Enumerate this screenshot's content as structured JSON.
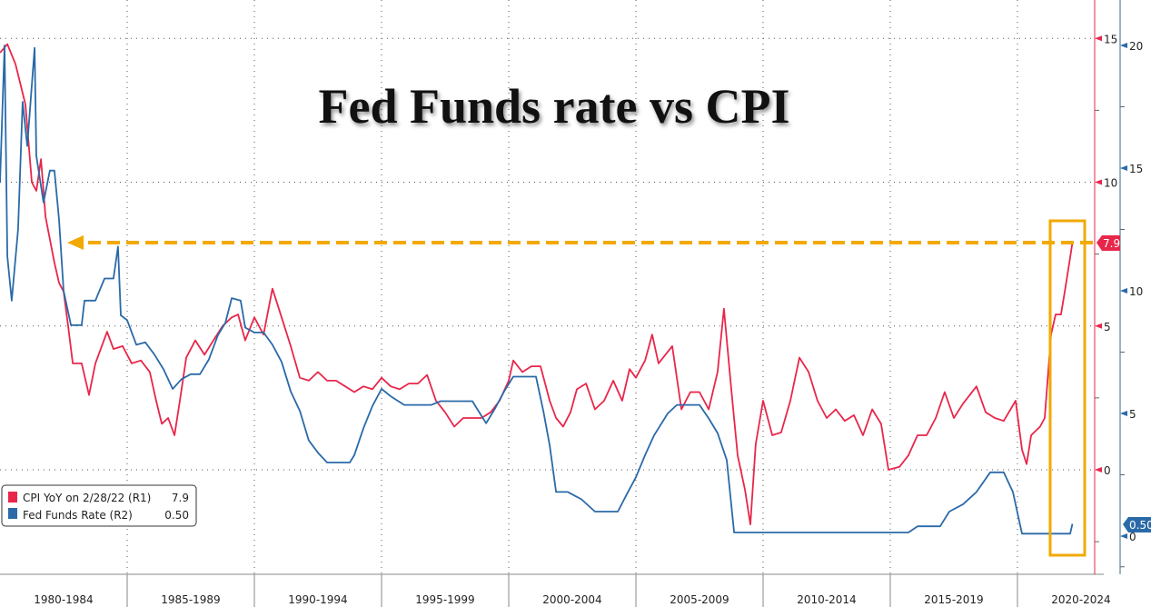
{
  "chart_data": {
    "type": "line",
    "title": "Fed Funds rate vs CPI",
    "x_tick_labels": [
      "1980-1984",
      "1985-1989",
      "1990-1994",
      "1995-1999",
      "2000-2004",
      "2005-2009",
      "2010-2014",
      "2015-2019",
      "2020-2024"
    ],
    "xlim": [
      1980,
      2023.1
    ],
    "axes": {
      "R1": {
        "ylim": [
          -2.5,
          16.5
        ],
        "ticks": [
          0,
          5,
          10,
          15
        ],
        "color": "#e8264a"
      },
      "R2": {
        "ylim": [
          -1.5,
          22
        ],
        "ticks": [
          0,
          5,
          10,
          15,
          20
        ],
        "color": "#2a6aa8"
      }
    },
    "grid": true,
    "legend_position": "bottom-left",
    "legend": [
      {
        "label": "CPI YoY on 2/28/22 (R1)",
        "value": "7.9",
        "color": "#e8264a"
      },
      {
        "label": "Fed Funds Rate (R2)",
        "value": "0.50",
        "color": "#2a6aa8"
      }
    ],
    "last_value_labels": {
      "cpi": "7.9",
      "fed": "0.50"
    },
    "annotation": {
      "type": "dashed arrow from latest CPI back to same level in 1982, box around 2021-2022",
      "color": "#f2a900",
      "level": 7.9
    },
    "series": [
      {
        "name": "CPI YoY on 2/28/22 (R1)",
        "axis": "R1",
        "color": "#e8264a",
        "points": [
          [
            1980.0,
            14.5
          ],
          [
            1980.29,
            14.8
          ],
          [
            1980.61,
            14.1
          ],
          [
            1981.0,
            12.7
          ],
          [
            1981.25,
            10.0
          ],
          [
            1981.43,
            9.7
          ],
          [
            1981.61,
            10.8
          ],
          [
            1981.79,
            8.8
          ],
          [
            1982.14,
            7.2
          ],
          [
            1982.32,
            6.5
          ],
          [
            1982.5,
            6.2
          ],
          [
            1982.68,
            5.0
          ],
          [
            1982.86,
            3.7
          ],
          [
            1983.21,
            3.7
          ],
          [
            1983.5,
            2.6
          ],
          [
            1983.75,
            3.7
          ],
          [
            1984.21,
            4.8
          ],
          [
            1984.46,
            4.2
          ],
          [
            1984.82,
            4.3
          ],
          [
            1985.18,
            3.7
          ],
          [
            1985.54,
            3.8
          ],
          [
            1985.89,
            3.4
          ],
          [
            1986.14,
            2.4
          ],
          [
            1986.36,
            1.6
          ],
          [
            1986.61,
            1.8
          ],
          [
            1986.86,
            1.2
          ],
          [
            1987.07,
            2.4
          ],
          [
            1987.32,
            3.9
          ],
          [
            1987.68,
            4.5
          ],
          [
            1988.04,
            4.0
          ],
          [
            1988.39,
            4.5
          ],
          [
            1988.75,
            5.0
          ],
          [
            1989.11,
            5.3
          ],
          [
            1989.36,
            5.4
          ],
          [
            1989.64,
            4.5
          ],
          [
            1990.0,
            5.3
          ],
          [
            1990.36,
            4.7
          ],
          [
            1990.71,
            6.3
          ],
          [
            1991.07,
            5.3
          ],
          [
            1991.43,
            4.3
          ],
          [
            1991.79,
            3.2
          ],
          [
            1992.14,
            3.1
          ],
          [
            1992.5,
            3.4
          ],
          [
            1992.86,
            3.1
          ],
          [
            1993.21,
            3.1
          ],
          [
            1993.57,
            2.9
          ],
          [
            1993.93,
            2.7
          ],
          [
            1994.29,
            2.9
          ],
          [
            1994.64,
            2.8
          ],
          [
            1995.0,
            3.2
          ],
          [
            1995.36,
            2.9
          ],
          [
            1995.71,
            2.8
          ],
          [
            1996.07,
            3.0
          ],
          [
            1996.43,
            3.0
          ],
          [
            1996.79,
            3.3
          ],
          [
            1997.14,
            2.4
          ],
          [
            1997.5,
            2.0
          ],
          [
            1997.86,
            1.5
          ],
          [
            1998.21,
            1.8
          ],
          [
            1998.57,
            1.8
          ],
          [
            1998.93,
            1.8
          ],
          [
            1999.29,
            2.0
          ],
          [
            1999.64,
            2.4
          ],
          [
            2000.0,
            3.1
          ],
          [
            2000.18,
            3.8
          ],
          [
            2000.54,
            3.4
          ],
          [
            2000.89,
            3.6
          ],
          [
            2001.25,
            3.6
          ],
          [
            2001.61,
            2.4
          ],
          [
            2001.86,
            1.8
          ],
          [
            2002.14,
            1.5
          ],
          [
            2002.43,
            2.0
          ],
          [
            2002.68,
            2.8
          ],
          [
            2003.04,
            3.0
          ],
          [
            2003.39,
            2.1
          ],
          [
            2003.75,
            2.4
          ],
          [
            2004.11,
            3.1
          ],
          [
            2004.46,
            2.4
          ],
          [
            2004.75,
            3.5
          ],
          [
            2005.0,
            3.2
          ],
          [
            2005.36,
            3.8
          ],
          [
            2005.64,
            4.7
          ],
          [
            2005.89,
            3.7
          ],
          [
            2006.43,
            4.3
          ],
          [
            2006.79,
            2.1
          ],
          [
            2007.14,
            2.7
          ],
          [
            2007.5,
            2.7
          ],
          [
            2007.86,
            2.1
          ],
          [
            2008.21,
            3.4
          ],
          [
            2008.46,
            5.6
          ],
          [
            2008.75,
            2.8
          ],
          [
            2009.0,
            0.5
          ],
          [
            2009.29,
            -0.7
          ],
          [
            2009.5,
            -1.9
          ],
          [
            2009.71,
            0.9
          ],
          [
            2010.0,
            2.4
          ],
          [
            2010.36,
            1.2
          ],
          [
            2010.71,
            1.3
          ],
          [
            2011.07,
            2.4
          ],
          [
            2011.43,
            3.9
          ],
          [
            2011.79,
            3.4
          ],
          [
            2012.14,
            2.4
          ],
          [
            2012.5,
            1.8
          ],
          [
            2012.86,
            2.1
          ],
          [
            2013.21,
            1.7
          ],
          [
            2013.57,
            1.9
          ],
          [
            2013.93,
            1.2
          ],
          [
            2014.29,
            2.1
          ],
          [
            2014.64,
            1.6
          ],
          [
            2014.93,
            0.0
          ],
          [
            2015.36,
            0.1
          ],
          [
            2015.71,
            0.5
          ],
          [
            2016.07,
            1.2
          ],
          [
            2016.43,
            1.2
          ],
          [
            2016.79,
            1.8
          ],
          [
            2017.14,
            2.7
          ],
          [
            2017.5,
            1.8
          ],
          [
            2017.86,
            2.3
          ],
          [
            2018.39,
            2.9
          ],
          [
            2018.75,
            2.0
          ],
          [
            2019.11,
            1.8
          ],
          [
            2019.46,
            1.7
          ],
          [
            2019.93,
            2.4
          ],
          [
            2020.18,
            0.7
          ],
          [
            2020.36,
            0.2
          ],
          [
            2020.54,
            1.2
          ],
          [
            2020.89,
            1.5
          ],
          [
            2021.07,
            1.8
          ],
          [
            2021.32,
            4.7
          ],
          [
            2021.5,
            5.4
          ],
          [
            2021.71,
            5.4
          ],
          [
            2021.86,
            6.2
          ],
          [
            2022.04,
            7.2
          ],
          [
            2022.16,
            7.9
          ]
        ]
      },
      {
        "name": "Fed Funds Rate (R2)",
        "axis": "R2",
        "color": "#2a6aa8",
        "points": [
          [
            1980.0,
            14.4
          ],
          [
            1980.18,
            20.0
          ],
          [
            1980.29,
            11.4
          ],
          [
            1980.46,
            9.6
          ],
          [
            1980.71,
            12.5
          ],
          [
            1980.89,
            17.7
          ],
          [
            1981.07,
            15.9
          ],
          [
            1981.36,
            19.9
          ],
          [
            1981.43,
            15.5
          ],
          [
            1981.71,
            13.6
          ],
          [
            1981.96,
            14.9
          ],
          [
            1982.14,
            14.9
          ],
          [
            1982.32,
            12.9
          ],
          [
            1982.5,
            10.0
          ],
          [
            1982.79,
            8.6
          ],
          [
            1983.21,
            8.6
          ],
          [
            1983.32,
            9.6
          ],
          [
            1983.75,
            9.6
          ],
          [
            1984.11,
            10.5
          ],
          [
            1984.46,
            10.5
          ],
          [
            1984.64,
            11.8
          ],
          [
            1984.75,
            9.0
          ],
          [
            1985.0,
            8.8
          ],
          [
            1985.36,
            7.8
          ],
          [
            1985.71,
            7.9
          ],
          [
            1986.07,
            7.4
          ],
          [
            1986.43,
            6.8
          ],
          [
            1986.79,
            6.0
          ],
          [
            1987.14,
            6.4
          ],
          [
            1987.5,
            6.6
          ],
          [
            1987.86,
            6.6
          ],
          [
            1988.21,
            7.2
          ],
          [
            1988.57,
            8.2
          ],
          [
            1988.86,
            8.7
          ],
          [
            1989.11,
            9.7
          ],
          [
            1989.46,
            9.6
          ],
          [
            1989.64,
            8.5
          ],
          [
            1990.0,
            8.3
          ],
          [
            1990.36,
            8.3
          ],
          [
            1990.71,
            7.8
          ],
          [
            1991.07,
            7.1
          ],
          [
            1991.43,
            5.9
          ],
          [
            1991.79,
            5.1
          ],
          [
            1992.14,
            3.9
          ],
          [
            1992.5,
            3.4
          ],
          [
            1992.86,
            3.0
          ],
          [
            1993.75,
            3.0
          ],
          [
            1993.93,
            3.3
          ],
          [
            1994.29,
            4.4
          ],
          [
            1994.64,
            5.3
          ],
          [
            1995.0,
            6.0
          ],
          [
            1995.36,
            5.7
          ],
          [
            1995.89,
            5.35
          ],
          [
            1996.96,
            5.35
          ],
          [
            1997.32,
            5.5
          ],
          [
            1998.57,
            5.5
          ],
          [
            1998.75,
            5.2
          ],
          [
            1999.11,
            4.6
          ],
          [
            1999.46,
            5.2
          ],
          [
            1999.82,
            5.9
          ],
          [
            2000.18,
            6.5
          ],
          [
            2001.07,
            6.5
          ],
          [
            2001.36,
            5.1
          ],
          [
            2001.61,
            3.7
          ],
          [
            2001.86,
            1.8
          ],
          [
            2002.32,
            1.8
          ],
          [
            2002.86,
            1.5
          ],
          [
            2003.39,
            1.0
          ],
          [
            2004.29,
            1.0
          ],
          [
            2004.64,
            1.7
          ],
          [
            2005.0,
            2.4
          ],
          [
            2005.36,
            3.3
          ],
          [
            2005.71,
            4.1
          ],
          [
            2006.25,
            5.0
          ],
          [
            2006.61,
            5.35
          ],
          [
            2007.5,
            5.35
          ],
          [
            2007.86,
            4.8
          ],
          [
            2008.21,
            4.2
          ],
          [
            2008.57,
            3.1
          ],
          [
            2008.86,
            0.15
          ],
          [
            2015.71,
            0.15
          ],
          [
            2016.07,
            0.4
          ],
          [
            2016.96,
            0.4
          ],
          [
            2017.32,
            1.0
          ],
          [
            2017.86,
            1.3
          ],
          [
            2018.39,
            1.8
          ],
          [
            2018.93,
            2.6
          ],
          [
            2019.46,
            2.6
          ],
          [
            2019.82,
            1.8
          ],
          [
            2020.18,
            0.1
          ],
          [
            2022.07,
            0.1
          ],
          [
            2022.16,
            0.5
          ]
        ]
      }
    ]
  }
}
